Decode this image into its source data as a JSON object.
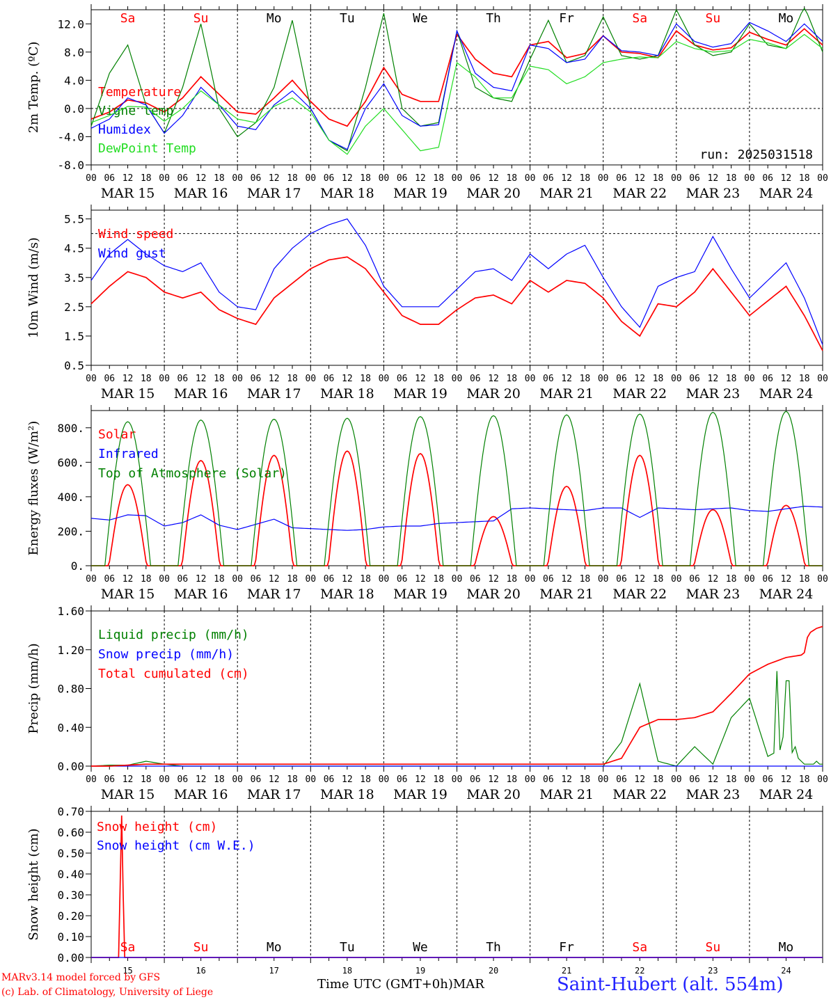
{
  "footer": {
    "credit_line1": "MARv3.14 model forced by GFS",
    "credit_line2": "(c) Lab. of Climatology, University of Liege",
    "xaxis_title": "Time UTC (GMT+0h)MAR",
    "station": "Saint-Hubert (alt. 554m)"
  },
  "colors": {
    "red": "#ff0000",
    "green": "#008000",
    "blue": "#0000ff",
    "lightgreen": "#22dd22",
    "black": "#000000"
  },
  "chart_data": [
    {
      "type": "line",
      "ylabel": "2m Temp. (ºC)",
      "ylim": [
        -8,
        14
      ],
      "yticks": [
        "-8.0",
        "-4.0",
        "0.0",
        "4.0",
        "8.0",
        "12.0"
      ],
      "yticks_values": [
        -8,
        -4,
        0,
        4,
        8,
        12
      ],
      "dashed_refline": 0,
      "annotation": "run: 2025031518",
      "day_labels": [
        {
          "text": "Sa",
          "color": "red"
        },
        {
          "text": "Su",
          "color": "red"
        },
        {
          "text": "Mo",
          "color": "black"
        },
        {
          "text": "Tu",
          "color": "black"
        },
        {
          "text": "We",
          "color": "black"
        },
        {
          "text": "Th",
          "color": "black"
        },
        {
          "text": "Fr",
          "color": "black"
        },
        {
          "text": "Sa",
          "color": "red"
        },
        {
          "text": "Su",
          "color": "red"
        },
        {
          "text": "Mo",
          "color": "black"
        }
      ],
      "x_hours": [
        0,
        6,
        12,
        18,
        24,
        30,
        36,
        42,
        48,
        54,
        60,
        66,
        72,
        78,
        84,
        90,
        96,
        102,
        108,
        114,
        120,
        126,
        132,
        138,
        144,
        150,
        156,
        162,
        168,
        174,
        180,
        186,
        192,
        198,
        204,
        210,
        216,
        222,
        228,
        234,
        240
      ],
      "series": [
        {
          "name": "Temperature",
          "color": "red",
          "values": [
            -1.5,
            -0.5,
            1.2,
            0.8,
            -0.5,
            1.5,
            4.5,
            2.0,
            -0.5,
            -0.8,
            1.5,
            4.0,
            1.0,
            -1.5,
            -2.5,
            1.0,
            5.8,
            2.0,
            1.0,
            1.0,
            10.5,
            7.0,
            5.0,
            4.5,
            9.0,
            9.5,
            7.2,
            7.8,
            10.3,
            8.0,
            7.8,
            7.2,
            11.0,
            9.0,
            8.3,
            8.6,
            10.8,
            9.8,
            9.0,
            11.3,
            9.0
          ]
        },
        {
          "name": "Vigne temp",
          "color": "green",
          "values": [
            -2.5,
            5.0,
            9.0,
            0.5,
            -3.5,
            3.0,
            12.0,
            0.0,
            -4.0,
            -2.0,
            3.0,
            12.5,
            0.0,
            -4.5,
            -6.0,
            3.0,
            13.5,
            0.0,
            -2.5,
            -2.0,
            11.0,
            3.0,
            1.5,
            1.0,
            7.0,
            12.5,
            6.5,
            7.5,
            13.0,
            7.5,
            7.0,
            7.5,
            14.0,
            9.0,
            7.5,
            8.0,
            12.0,
            9.0,
            8.5,
            14.5,
            8.0
          ]
        },
        {
          "name": "Humidex",
          "color": "blue",
          "values": [
            -2.8,
            -1.5,
            1.5,
            0.5,
            -3.5,
            -1.0,
            3.0,
            0.5,
            -2.5,
            -3.0,
            0.5,
            2.5,
            0.0,
            -4.5,
            -5.8,
            0.0,
            3.5,
            -1.0,
            -2.5,
            -2.3,
            11.0,
            5.0,
            3.0,
            2.5,
            9.0,
            8.5,
            6.5,
            7.0,
            10.3,
            8.2,
            8.0,
            7.5,
            12.0,
            9.5,
            8.7,
            9.2,
            12.2,
            11.0,
            9.5,
            12.0,
            9.5
          ]
        },
        {
          "name": "DewPoint Temp",
          "color": "lightgreen",
          "values": [
            -2.0,
            -1.0,
            0.3,
            0.2,
            -1.8,
            0.0,
            2.5,
            0.5,
            -1.5,
            -2.0,
            0.3,
            1.5,
            -0.5,
            -4.5,
            -6.5,
            -2.5,
            0.0,
            -3.0,
            -6.0,
            -5.5,
            6.5,
            4.5,
            1.5,
            1.5,
            6.0,
            5.5,
            3.5,
            4.5,
            6.5,
            7.0,
            7.3,
            7.2,
            9.5,
            8.5,
            8.0,
            8.2,
            9.8,
            9.3,
            8.5,
            10.5,
            8.5
          ]
        }
      ]
    },
    {
      "type": "line",
      "ylabel": "10m Wind (m/s)",
      "ylim": [
        0.5,
        5.8
      ],
      "yticks": [
        "0.5",
        "1.5",
        "2.5",
        "3.5",
        "4.5",
        "5.5"
      ],
      "yticks_values": [
        0.5,
        1.5,
        2.5,
        3.5,
        4.5,
        5.5
      ],
      "dashed_refline": 5,
      "x_hours": [
        0,
        6,
        12,
        18,
        24,
        30,
        36,
        42,
        48,
        54,
        60,
        66,
        72,
        78,
        84,
        90,
        96,
        102,
        108,
        114,
        120,
        126,
        132,
        138,
        144,
        150,
        156,
        162,
        168,
        174,
        180,
        186,
        192,
        198,
        204,
        210,
        216,
        222,
        228,
        234,
        240
      ],
      "series": [
        {
          "name": "Wind speed",
          "color": "red",
          "values": [
            2.6,
            3.2,
            3.7,
            3.5,
            3.0,
            2.8,
            3.0,
            2.4,
            2.1,
            1.9,
            2.8,
            3.3,
            3.8,
            4.1,
            4.2,
            3.8,
            3.0,
            2.2,
            1.9,
            1.9,
            2.4,
            2.8,
            2.9,
            2.6,
            3.4,
            3.0,
            3.4,
            3.3,
            2.8,
            2.0,
            1.5,
            2.6,
            2.5,
            3.0,
            3.8,
            3.0,
            2.2,
            2.7,
            3.2,
            2.2,
            1.0
          ]
        },
        {
          "name": "Wind gust",
          "color": "blue",
          "values": [
            3.4,
            4.3,
            4.8,
            4.3,
            3.9,
            3.7,
            4.0,
            3.0,
            2.5,
            2.4,
            3.8,
            4.5,
            5.0,
            5.3,
            5.5,
            4.6,
            3.2,
            2.5,
            2.5,
            2.5,
            3.1,
            3.7,
            3.8,
            3.4,
            4.3,
            3.8,
            4.3,
            4.6,
            3.5,
            2.5,
            1.8,
            3.2,
            3.5,
            3.7,
            4.9,
            3.8,
            2.8,
            3.4,
            4.0,
            2.8,
            1.2
          ]
        }
      ]
    },
    {
      "type": "line",
      "ylabel": "Energy fluxes (W/m²)",
      "ylim": [
        0,
        900
      ],
      "yticks": [
        "0.",
        "200.",
        "400.",
        "600.",
        "800."
      ],
      "yticks_values": [
        0,
        200,
        400,
        600,
        800
      ],
      "diurnal_peaks": [
        470,
        610,
        640,
        665,
        650,
        285,
        460,
        640,
        325,
        350
      ],
      "toa_peaks": [
        835,
        845,
        850,
        855,
        865,
        870,
        875,
        880,
        890,
        895
      ],
      "series": [
        {
          "name": "Solar",
          "color": "red"
        },
        {
          "name": "Infrared",
          "color": "blue",
          "x_hours": [
            0,
            6,
            12,
            18,
            24,
            30,
            36,
            42,
            48,
            54,
            60,
            66,
            72,
            78,
            84,
            90,
            96,
            102,
            108,
            114,
            120,
            126,
            132,
            138,
            144,
            150,
            156,
            162,
            168,
            174,
            180,
            186,
            192,
            198,
            204,
            210,
            216,
            222,
            228,
            234,
            240
          ],
          "values": [
            275,
            265,
            295,
            290,
            230,
            250,
            295,
            235,
            210,
            240,
            270,
            220,
            215,
            210,
            205,
            210,
            225,
            230,
            230,
            245,
            250,
            255,
            260,
            330,
            335,
            330,
            325,
            320,
            335,
            335,
            280,
            335,
            330,
            325,
            330,
            335,
            320,
            315,
            330,
            345,
            340
          ]
        },
        {
          "name": "Top of Atmosphere (Solar)",
          "color": "green"
        }
      ]
    },
    {
      "type": "line",
      "ylabel": "Precip (mm/h)",
      "ylim": [
        0,
        1.6
      ],
      "yticks": [
        "0.00",
        "0.40",
        "0.80",
        "1.20",
        "1.60"
      ],
      "yticks_values": [
        0,
        0.4,
        0.8,
        1.2,
        1.6
      ],
      "x_hours": [
        0,
        6,
        12,
        18,
        24,
        30,
        36,
        42,
        48,
        54,
        60,
        66,
        72,
        78,
        84,
        90,
        96,
        102,
        108,
        114,
        120,
        126,
        132,
        138,
        144,
        150,
        156,
        162,
        168,
        174,
        180,
        186,
        192,
        198,
        204,
        210,
        216,
        222,
        228,
        234,
        240
      ],
      "series": [
        {
          "name": "Liquid precip (mm/h)",
          "color": "green",
          "values": [
            0,
            0.01,
            0.01,
            0.05,
            0.02,
            0,
            0,
            0,
            0,
            0,
            0,
            0,
            0,
            0,
            0,
            0,
            0,
            0,
            0,
            0,
            0,
            0,
            0,
            0,
            0,
            0,
            0,
            0,
            0,
            0.25,
            0.85,
            0.05,
            0,
            0.2,
            0.02,
            0.5,
            0.7,
            0.1,
            0.2,
            0.02,
            0.02
          ]
        },
        {
          "name": "Snow precip (mm/h)",
          "color": "blue",
          "values": [
            0,
            0,
            0,
            0,
            0,
            0,
            0,
            0,
            0,
            0,
            0,
            0,
            0,
            0,
            0,
            0,
            0,
            0,
            0,
            0,
            0,
            0,
            0,
            0,
            0,
            0,
            0,
            0,
            0,
            0,
            0,
            0,
            0,
            0,
            0,
            0,
            0,
            0,
            0,
            0,
            0
          ]
        },
        {
          "name": "Total cumulated (cm)",
          "color": "red",
          "values": [
            0,
            0,
            0.01,
            0.02,
            0.02,
            0.02,
            0.02,
            0.02,
            0.02,
            0.02,
            0.02,
            0.02,
            0.02,
            0.02,
            0.02,
            0.02,
            0.02,
            0.02,
            0.02,
            0.02,
            0.02,
            0.02,
            0.02,
            0.02,
            0.02,
            0.02,
            0.02,
            0.02,
            0.02,
            0.08,
            0.4,
            0.48,
            0.48,
            0.5,
            0.56,
            0.75,
            0.95,
            1.05,
            1.12,
            1.15,
            1.18
          ]
        }
      ],
      "extra_spikes": [
        [
          225,
          0.98
        ],
        [
          227,
          0.3
        ],
        [
          228.5,
          0.88
        ],
        [
          231,
          0.2
        ],
        [
          238,
          0.05
        ]
      ],
      "cumulative_tail": [
        [
          234,
          1.17
        ],
        [
          234.5,
          1.3
        ],
        [
          236,
          1.38
        ],
        [
          238,
          1.42
        ],
        [
          240,
          1.44
        ]
      ]
    },
    {
      "type": "line",
      "ylabel": "Snow height (cm)",
      "ylim": [
        0,
        0.7
      ],
      "yticks": [
        "0.00",
        "0.10",
        "0.20",
        "0.30",
        "0.40",
        "0.50",
        "0.60",
        "0.70"
      ],
      "yticks_values": [
        0,
        0.1,
        0.2,
        0.3,
        0.4,
        0.5,
        0.6,
        0.7
      ],
      "series": [
        {
          "name": "Snow height (cm)",
          "color": "red",
          "x_hours": [
            0,
            9,
            10,
            10.5,
            11,
            240
          ],
          "values": [
            0,
            0,
            0.68,
            0.3,
            0,
            0
          ]
        },
        {
          "name": "Snow height (cm W.E.)",
          "color": "blue",
          "x_hours": [
            0,
            240
          ],
          "values": [
            0,
            0
          ]
        }
      ],
      "day_labels": [
        {
          "text": "Sa",
          "color": "red"
        },
        {
          "text": "Su",
          "color": "red"
        },
        {
          "text": "Mo",
          "color": "black"
        },
        {
          "text": "Tu",
          "color": "black"
        },
        {
          "text": "We",
          "color": "black"
        },
        {
          "text": "Th",
          "color": "black"
        },
        {
          "text": "Fr",
          "color": "black"
        },
        {
          "text": "Sa",
          "color": "red"
        },
        {
          "text": "Su",
          "color": "red"
        },
        {
          "text": "Mo",
          "color": "black"
        }
      ],
      "day_numbers": [
        "15",
        "16",
        "17",
        "18",
        "19",
        "20",
        "21",
        "22",
        "23",
        "24"
      ]
    }
  ],
  "xaxis": {
    "hour_ticks": [
      "00",
      "06",
      "12",
      "18"
    ],
    "final_tick": "00",
    "date_labels": [
      "MAR 15",
      "MAR 16",
      "MAR 17",
      "MAR 18",
      "MAR 19",
      "MAR 20",
      "MAR 21",
      "MAR 22",
      "MAR 23",
      "MAR 24"
    ]
  }
}
